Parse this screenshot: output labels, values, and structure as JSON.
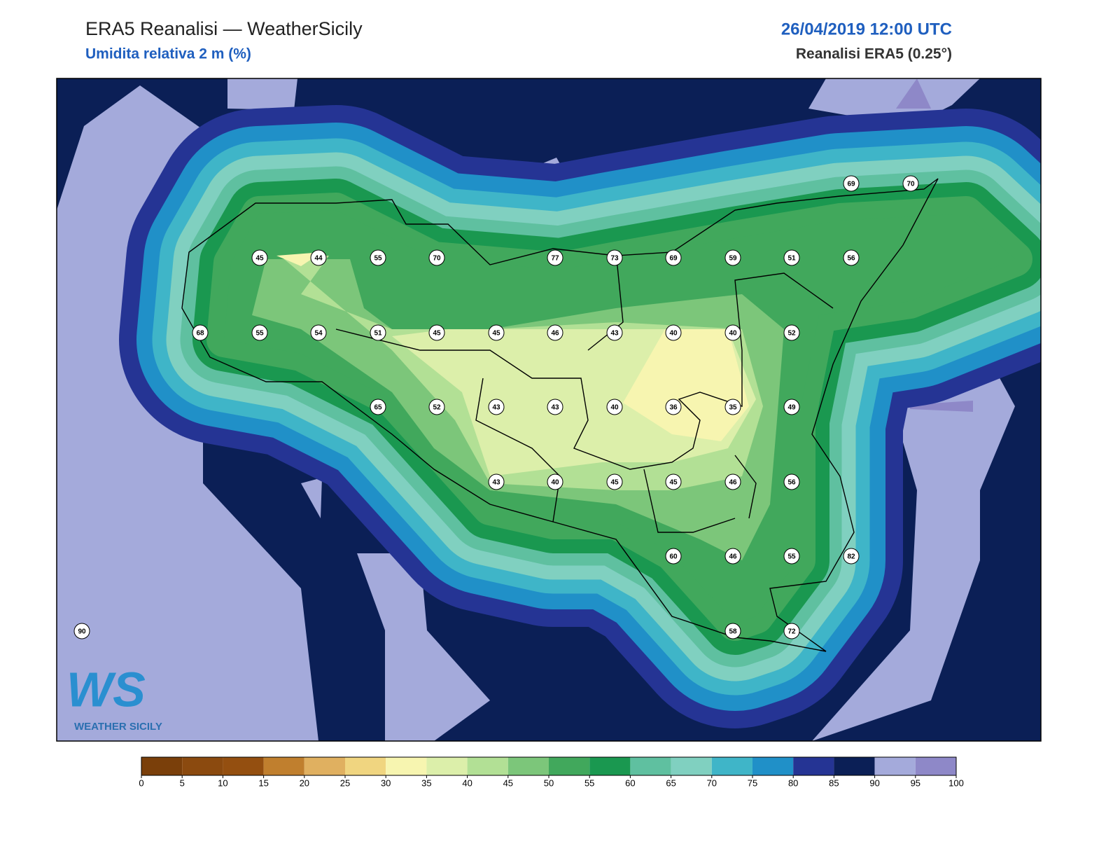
{
  "header": {
    "title": "ERA5 Reanalisi — WeatherSicily",
    "subtitle": "Umidita relativa 2 m (%)",
    "date": "26/04/2019 12:00 UTC",
    "source": "Reanalisi ERA5 (0.25°)"
  },
  "stations": [
    69,
    70,
    45,
    44,
    55,
    70,
    77,
    73,
    69,
    59,
    51,
    56,
    68,
    55,
    54,
    51,
    45,
    45,
    46,
    43,
    40,
    40,
    52,
    65,
    52,
    43,
    43,
    40,
    36,
    35,
    49,
    43,
    40,
    45,
    45,
    46,
    56,
    60,
    46,
    55,
    82,
    90,
    58,
    72
  ],
  "colorbar": {
    "ticks": [
      0,
      5,
      10,
      15,
      20,
      25,
      30,
      35,
      40,
      45,
      50,
      55,
      60,
      65,
      70,
      75,
      80,
      85,
      90,
      95,
      100
    ],
    "colors": [
      "#7a3f0a",
      "#8b4a0f",
      "#944f10",
      "#c07f2e",
      "#e0b060",
      "#f0d580",
      "#f7f5b0",
      "#dcefaa",
      "#b2e095",
      "#7cc67a",
      "#41a85c",
      "#1a9850",
      "#5fc0a0",
      "#80d0c0",
      "#3fb5c8",
      "#2090c8",
      "#253494",
      "#0b1f56",
      "#a4aadb",
      "#8e88c8"
    ]
  },
  "logo": {
    "mark": "WS",
    "name": "WEATHER SICILY"
  }
}
